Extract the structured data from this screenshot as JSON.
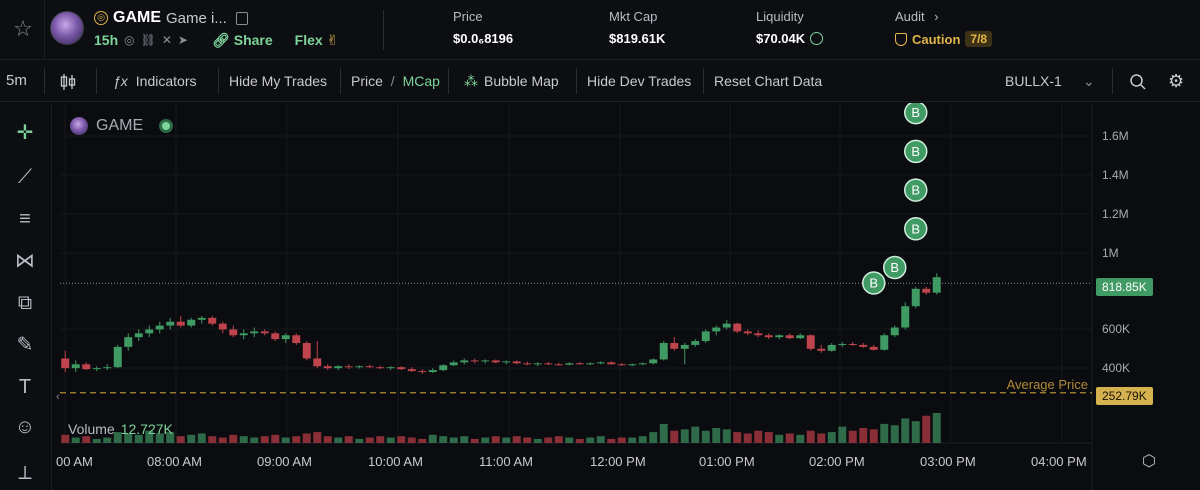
{
  "header": {
    "token_symbol": "GAME",
    "token_name": "Game i...",
    "age": "15h",
    "share_label": "Share",
    "flex_label": "Flex",
    "stats": {
      "price_label": "Price",
      "price_value": "$0.0₆8196",
      "mcap_label": "Mkt Cap",
      "mcap_value": "$819.61K",
      "liquidity_label": "Liquidity",
      "liquidity_value": "$70.04K",
      "audit_label": "Audit",
      "caution_label": "Caution",
      "caution_score": "7/8"
    }
  },
  "toolbar": {
    "interval": "5m",
    "indicators_label": "Indicators",
    "hide_trades_label": "Hide My Trades",
    "price_label": "Price",
    "slash": "/",
    "mcap_label": "MCap",
    "bubble_map_label": "Bubble Map",
    "hide_dev_label": "Hide Dev Trades",
    "reset_label": "Reset Chart Data",
    "provider": "BULLX-1"
  },
  "chart": {
    "legend_symbol": "GAME",
    "volume_label": "Volume",
    "volume_value": "12.727K",
    "avg_price_label": "Average Price",
    "current_tag": "818.85K",
    "avg_tag": "252.79K",
    "y_ticks": [
      "1.6M",
      "1.4M",
      "1.2M",
      "1M",
      "600K",
      "400K"
    ],
    "x_ticks": [
      "00 AM",
      "08:00 AM",
      "09:00 AM",
      "10:00 AM",
      "11:00 AM",
      "12:00 PM",
      "01:00 PM",
      "02:00 PM",
      "03:00 PM",
      "04:00 PM"
    ],
    "buy_marker_label": "B"
  },
  "chart_data": {
    "type": "candlestick",
    "unit": "market cap (USD)",
    "x_axis": "time (5m intervals)",
    "ohlc": [
      [
        430000,
        470000,
        360000,
        380000
      ],
      [
        380000,
        420000,
        360000,
        400000
      ],
      [
        400000,
        410000,
        370000,
        375000
      ],
      [
        375000,
        390000,
        365000,
        380000
      ],
      [
        380000,
        400000,
        370000,
        385000
      ],
      [
        385000,
        500000,
        380000,
        490000
      ],
      [
        490000,
        560000,
        470000,
        540000
      ],
      [
        540000,
        580000,
        520000,
        560000
      ],
      [
        560000,
        600000,
        540000,
        580000
      ],
      [
        580000,
        620000,
        560000,
        600000
      ],
      [
        600000,
        640000,
        580000,
        620000
      ],
      [
        620000,
        650000,
        590000,
        600000
      ],
      [
        600000,
        640000,
        590000,
        630000
      ],
      [
        630000,
        650000,
        610000,
        640000
      ],
      [
        640000,
        650000,
        600000,
        610000
      ],
      [
        610000,
        620000,
        560000,
        580000
      ],
      [
        580000,
        600000,
        540000,
        550000
      ],
      [
        550000,
        580000,
        530000,
        560000
      ],
      [
        560000,
        590000,
        540000,
        570000
      ],
      [
        570000,
        580000,
        550000,
        560000
      ],
      [
        560000,
        570000,
        520000,
        530000
      ],
      [
        530000,
        560000,
        510000,
        550000
      ],
      [
        550000,
        560000,
        500000,
        510000
      ],
      [
        510000,
        520000,
        420000,
        430000
      ],
      [
        430000,
        520000,
        380000,
        390000
      ],
      [
        390000,
        400000,
        370000,
        380000
      ],
      [
        380000,
        395000,
        370000,
        390000
      ],
      [
        390000,
        400000,
        375000,
        385000
      ],
      [
        385000,
        395000,
        378000,
        390000
      ],
      [
        390000,
        398000,
        380000,
        385000
      ],
      [
        385000,
        392000,
        375000,
        380000
      ],
      [
        380000,
        390000,
        370000,
        385000
      ],
      [
        385000,
        390000,
        370000,
        375000
      ],
      [
        375000,
        385000,
        360000,
        365000
      ],
      [
        365000,
        375000,
        350000,
        360000
      ],
      [
        360000,
        380000,
        355000,
        370000
      ],
      [
        370000,
        400000,
        365000,
        395000
      ],
      [
        395000,
        420000,
        390000,
        410000
      ],
      [
        410000,
        430000,
        400000,
        420000
      ],
      [
        420000,
        430000,
        405000,
        415000
      ],
      [
        415000,
        425000,
        405000,
        420000
      ],
      [
        420000,
        425000,
        405000,
        410000
      ],
      [
        410000,
        420000,
        400000,
        415000
      ],
      [
        415000,
        420000,
        400000,
        405000
      ],
      [
        405000,
        415000,
        395000,
        400000
      ],
      [
        400000,
        410000,
        390000,
        405000
      ],
      [
        405000,
        412000,
        395000,
        400000
      ],
      [
        400000,
        408000,
        392000,
        398000
      ],
      [
        398000,
        410000,
        395000,
        405000
      ],
      [
        405000,
        412000,
        398000,
        402000
      ],
      [
        402000,
        410000,
        396000,
        405000
      ],
      [
        405000,
        415000,
        400000,
        410000
      ],
      [
        410000,
        415000,
        398000,
        400000
      ],
      [
        400000,
        406000,
        392000,
        398000
      ],
      [
        398000,
        404000,
        390000,
        400000
      ],
      [
        400000,
        410000,
        395000,
        405000
      ],
      [
        405000,
        430000,
        400000,
        425000
      ],
      [
        425000,
        520000,
        420000,
        510000
      ],
      [
        510000,
        540000,
        470000,
        480000
      ],
      [
        480000,
        510000,
        400000,
        500000
      ],
      [
        500000,
        530000,
        490000,
        520000
      ],
      [
        520000,
        580000,
        510000,
        570000
      ],
      [
        570000,
        600000,
        550000,
        590000
      ],
      [
        590000,
        630000,
        580000,
        610000
      ],
      [
        610000,
        615000,
        560000,
        570000
      ],
      [
        570000,
        580000,
        550000,
        560000
      ],
      [
        560000,
        575000,
        540000,
        550000
      ],
      [
        550000,
        560000,
        530000,
        540000
      ],
      [
        540000,
        555000,
        530000,
        550000
      ],
      [
        550000,
        560000,
        530000,
        535000
      ],
      [
        535000,
        560000,
        530000,
        550000
      ],
      [
        550000,
        555000,
        470000,
        480000
      ],
      [
        480000,
        500000,
        460000,
        470000
      ],
      [
        470000,
        510000,
        465000,
        500000
      ],
      [
        500000,
        515000,
        490000,
        505000
      ],
      [
        505000,
        515000,
        495000,
        500000
      ],
      [
        500000,
        510000,
        485000,
        490000
      ],
      [
        490000,
        500000,
        470000,
        475000
      ],
      [
        475000,
        560000,
        470000,
        550000
      ],
      [
        550000,
        600000,
        540000,
        590000
      ],
      [
        590000,
        720000,
        580000,
        700000
      ],
      [
        700000,
        800000,
        690000,
        790000
      ],
      [
        790000,
        800000,
        760000,
        770000
      ],
      [
        770000,
        870000,
        760000,
        850000
      ]
    ],
    "volume": [
      6,
      4,
      5,
      3,
      4,
      8,
      7,
      6,
      9,
      7,
      8,
      5,
      6,
      7,
      5,
      4,
      6,
      5,
      4,
      5,
      6,
      4,
      5,
      7,
      8,
      5,
      4,
      5,
      3,
      4,
      5,
      4,
      5,
      4,
      3,
      6,
      5,
      4,
      5,
      3,
      4,
      5,
      4,
      5,
      4,
      3,
      4,
      5,
      4,
      3,
      4,
      5,
      3,
      4,
      4,
      5,
      8,
      14,
      9,
      10,
      12,
      9,
      11,
      10,
      8,
      7,
      9,
      8,
      6,
      7,
      6,
      9,
      7,
      8,
      12,
      9,
      11,
      10,
      14,
      13,
      18,
      16,
      20,
      22
    ],
    "y_axis_labels": [
      "1.6M",
      "1.4M",
      "1.2M",
      "1M",
      "600K",
      "400K"
    ],
    "ylim": [
      200000,
      1750000
    ],
    "current_value": 818850,
    "average_price": 252790,
    "buy_markers": [
      {
        "candle": 77,
        "value": 820000
      },
      {
        "candle": 79,
        "value": 900000
      },
      {
        "candle": 81,
        "value": 1100000
      },
      {
        "candle": 81,
        "value": 1300000
      },
      {
        "candle": 81,
        "value": 1500000
      },
      {
        "candle": 81,
        "value": 1700000
      }
    ],
    "colors": {
      "up": "#3f9a63",
      "down": "#c0444d",
      "avg_line": "#b08a36",
      "marker": "#3f9a63"
    }
  }
}
